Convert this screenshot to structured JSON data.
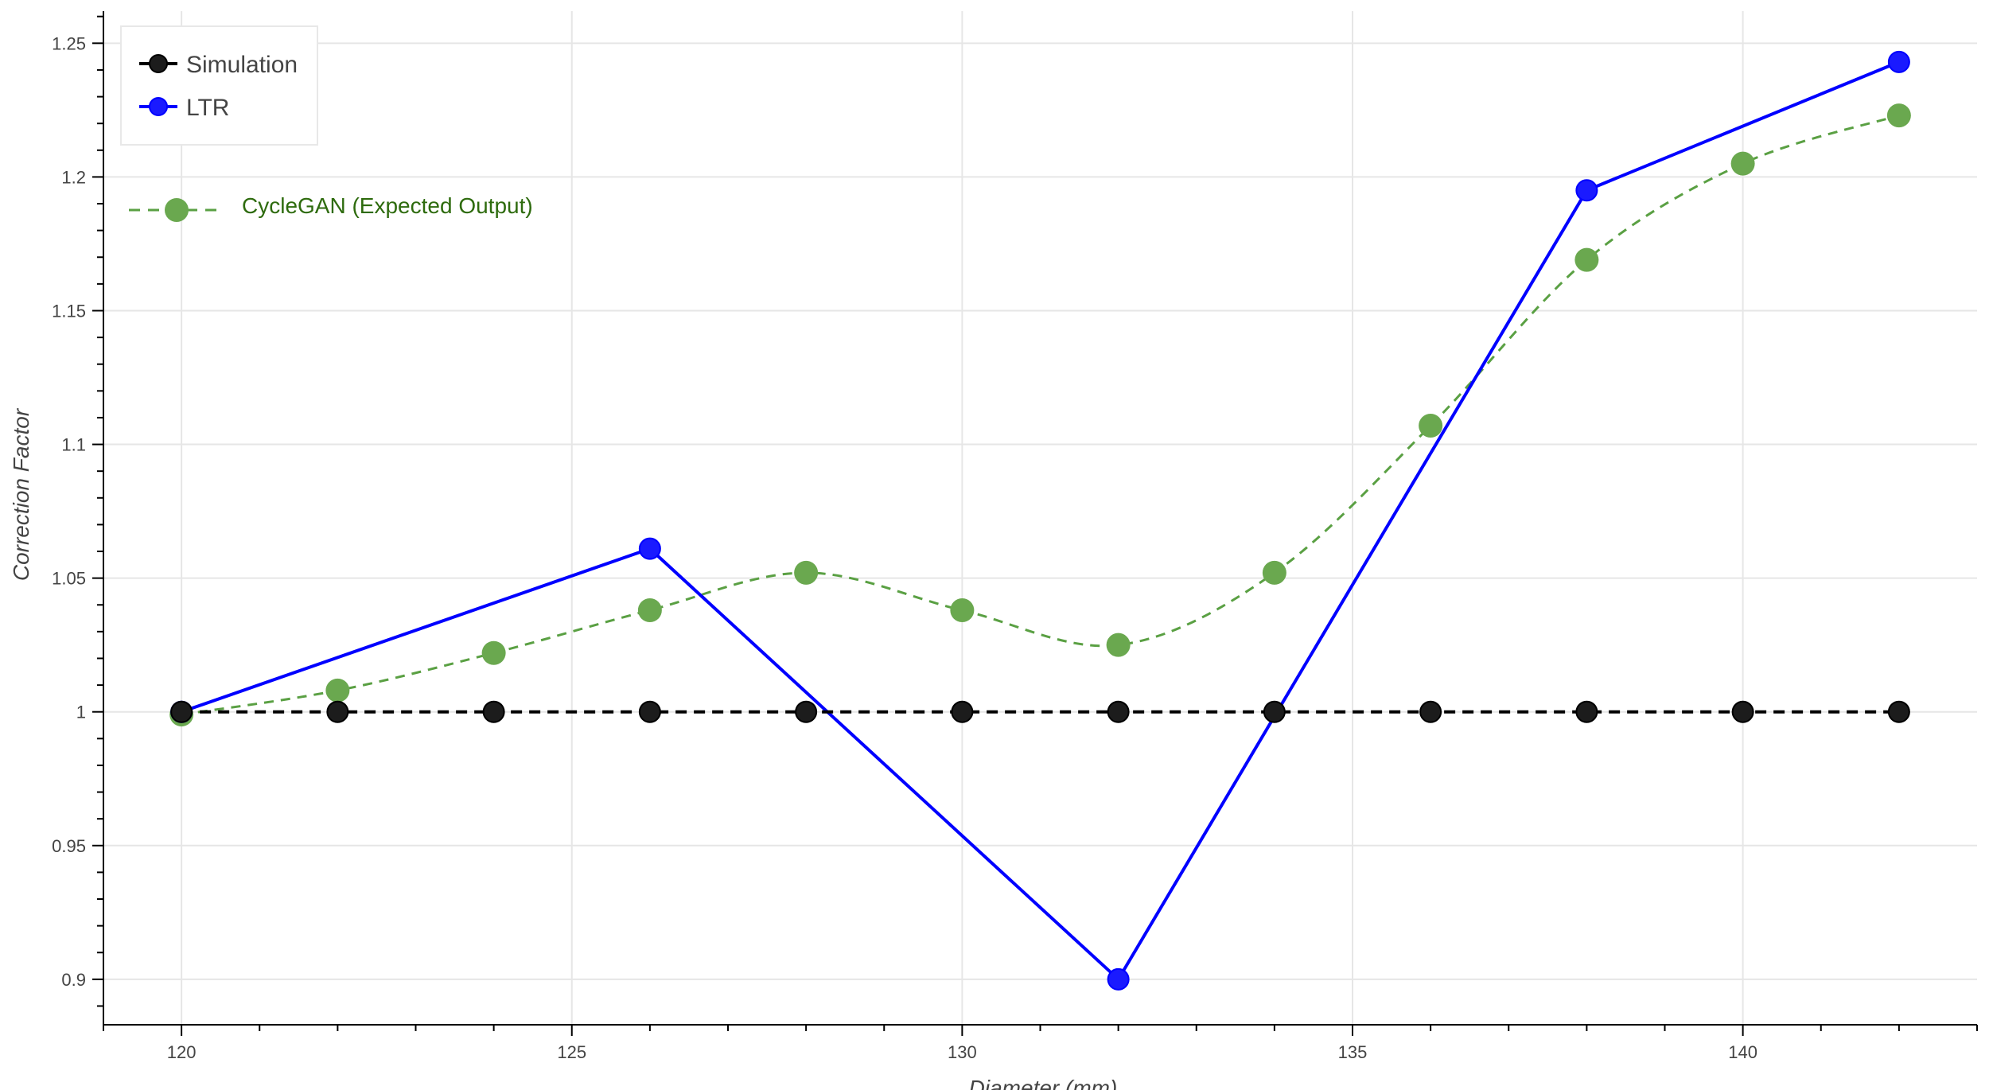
{
  "chart_data": {
    "type": "line",
    "title": "",
    "xlabel": "Diameter (mm)",
    "ylabel": "Correction Factor",
    "xlim": [
      119,
      143
    ],
    "ylim": [
      0.883,
      1.262
    ],
    "grid": true,
    "x_ticks": [
      120,
      125,
      130,
      135,
      140
    ],
    "x_tick_labels": [
      "120",
      "125",
      "130",
      "135",
      "140"
    ],
    "y_ticks": [
      0.9,
      0.95,
      1.0,
      1.05,
      1.1,
      1.15,
      1.2,
      1.25
    ],
    "y_tick_labels": [
      "0.9",
      "0.95",
      "1",
      "1.05",
      "1.1",
      "1.15",
      "1.2",
      "1.25"
    ],
    "legend": {
      "placement": "top-left",
      "entries": [
        {
          "name": "Simulation",
          "color": "#000000"
        },
        {
          "name": "LTR",
          "color": "#0000ff"
        }
      ]
    },
    "series": [
      {
        "name": "Simulation",
        "color": "#000000",
        "line": "dashed",
        "x": [
          120,
          122,
          124,
          126,
          128,
          130,
          132,
          134,
          136,
          138,
          140,
          142
        ],
        "y": [
          1,
          1,
          1,
          1,
          1,
          1,
          1,
          1,
          1,
          1,
          1,
          1
        ]
      },
      {
        "name": "LTR",
        "color": "#0000ff",
        "line": "solid",
        "x": [
          120,
          126,
          132,
          138,
          142
        ],
        "y": [
          1.0,
          1.061,
          0.9,
          1.195,
          1.243
        ]
      },
      {
        "name": "CycleGAN (Expected Output)",
        "color": "#5aa043",
        "line": "dashed",
        "smooth": true,
        "x": [
          120,
          122,
          124,
          126,
          128,
          130,
          132,
          134,
          136,
          138,
          140,
          142
        ],
        "y": [
          0.999,
          1.008,
          1.022,
          1.038,
          1.052,
          1.038,
          1.025,
          1.052,
          1.107,
          1.169,
          1.205,
          1.223
        ]
      }
    ],
    "annotation": {
      "text": "CycleGAN (Expected Output)",
      "color": "#2e6b0e"
    }
  }
}
